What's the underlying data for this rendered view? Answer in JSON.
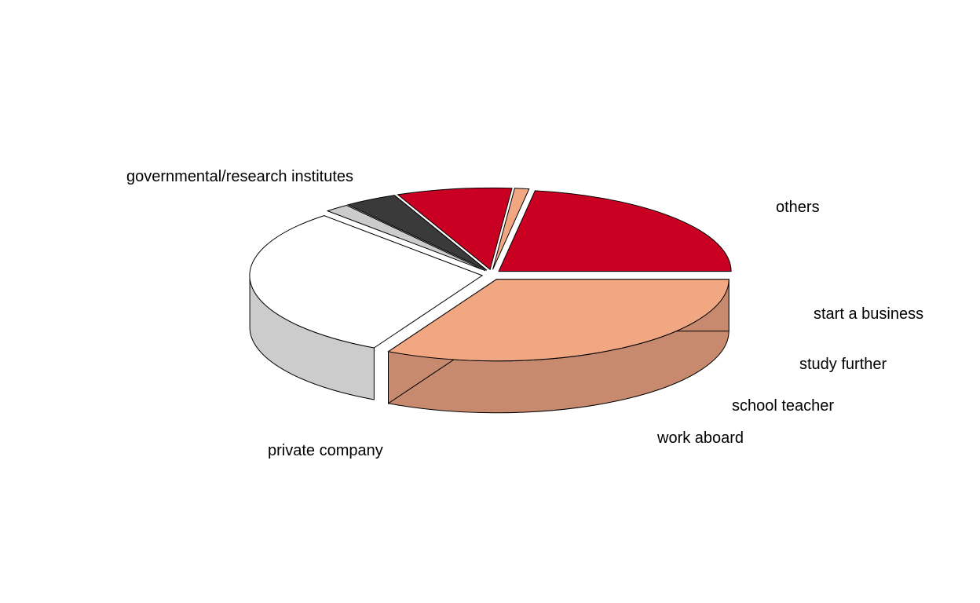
{
  "chart_data": {
    "type": "pie",
    "style": "3d-exploded",
    "title": "",
    "legend": "none",
    "slices": [
      {
        "label": "others",
        "value": 22.5,
        "color": "#C90021",
        "side": "#A50020"
      },
      {
        "label": "start a business",
        "value": 1.0,
        "color": "#F2A783",
        "side": "#C88A6E"
      },
      {
        "label": "study further",
        "value": 8.0,
        "color": "#C90021",
        "side": "#A50020"
      },
      {
        "label": "school teacher",
        "value": 3.7,
        "color": "#3A3A3A",
        "side": "#2A2A2A"
      },
      {
        "label": "work aboard",
        "value": 1.7,
        "color": "#CCCCCC",
        "side": "#9E9E9E"
      },
      {
        "label": "private company",
        "value": 30.4,
        "color": "#FFFFFF",
        "side": "#CCCCCC"
      },
      {
        "label": "governmental/research institutes",
        "value": 32.7,
        "color": "#F2A783",
        "side": "#C88A6E"
      }
    ]
  }
}
